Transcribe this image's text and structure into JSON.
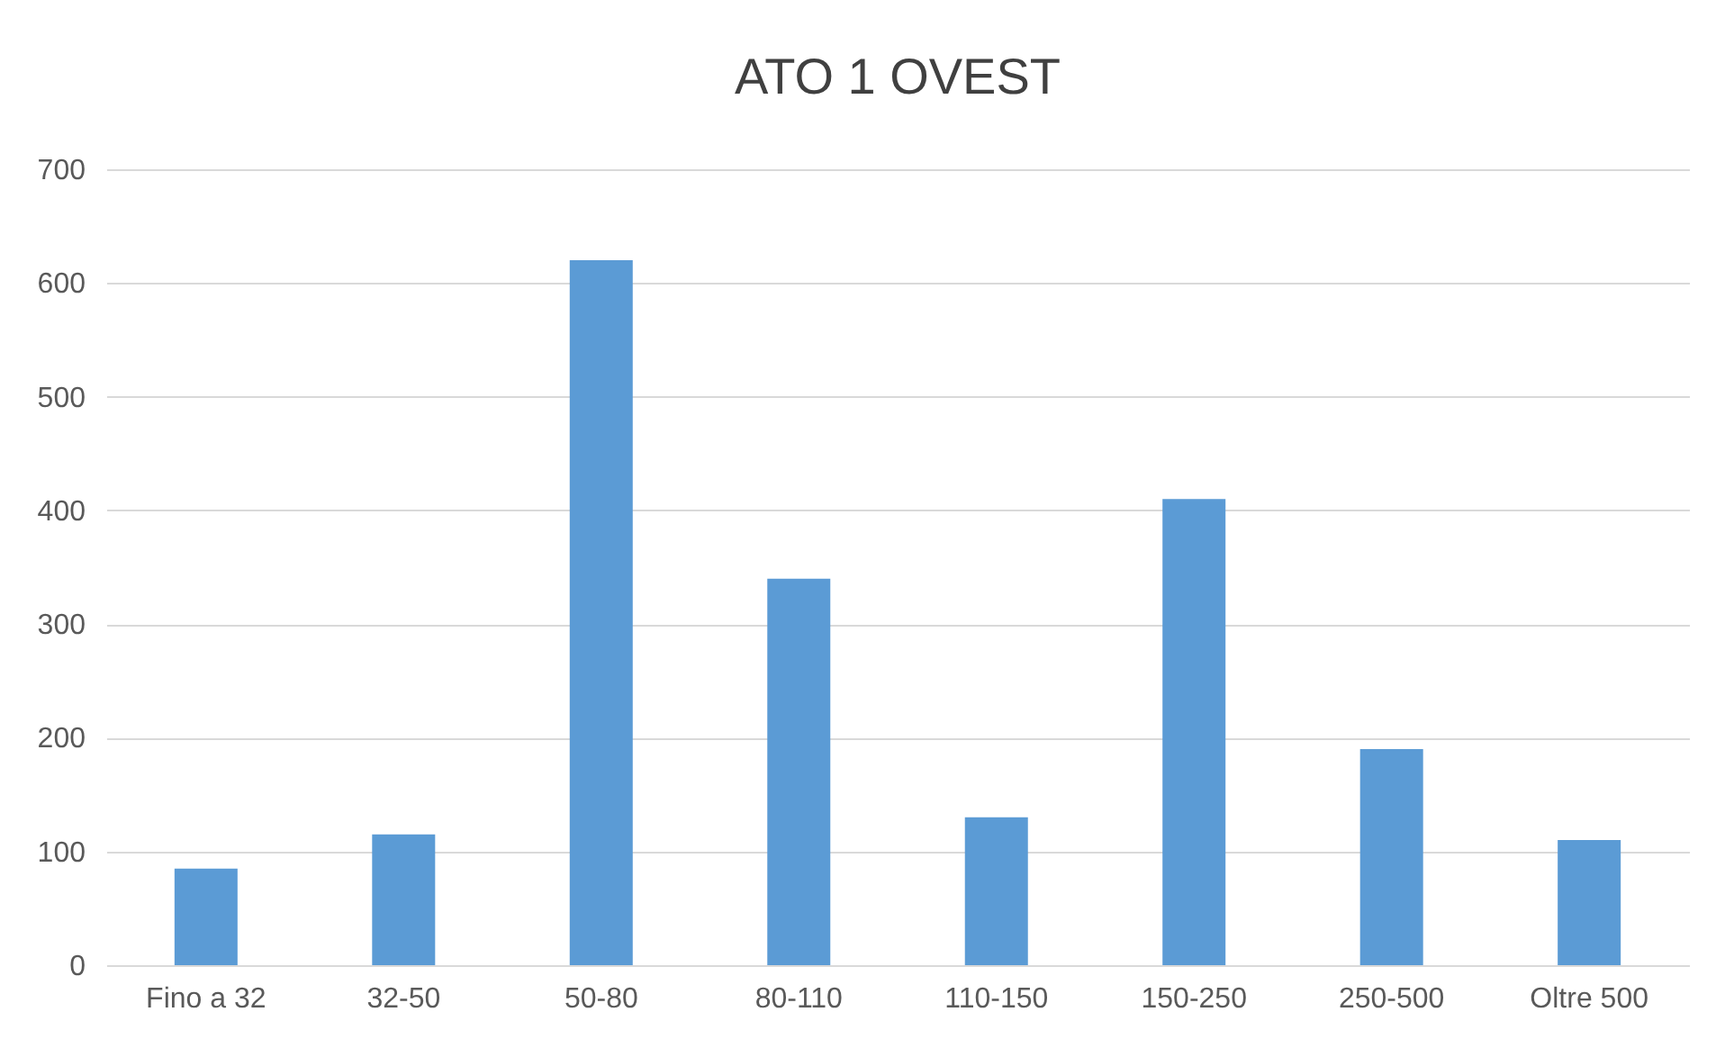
{
  "chart_data": {
    "type": "bar",
    "title": "ATO 1 OVEST",
    "categories": [
      "Fino a 32",
      "32-50",
      "50-80",
      "80-110",
      "110-150",
      "150-250",
      "250-500",
      "Oltre 500"
    ],
    "values": [
      85,
      115,
      620,
      340,
      130,
      410,
      190,
      110
    ],
    "color": "#5b9bd5",
    "ylim": [
      0,
      700
    ],
    "yticks": [
      0,
      100,
      200,
      300,
      400,
      500,
      600,
      700
    ],
    "grid": "y"
  }
}
